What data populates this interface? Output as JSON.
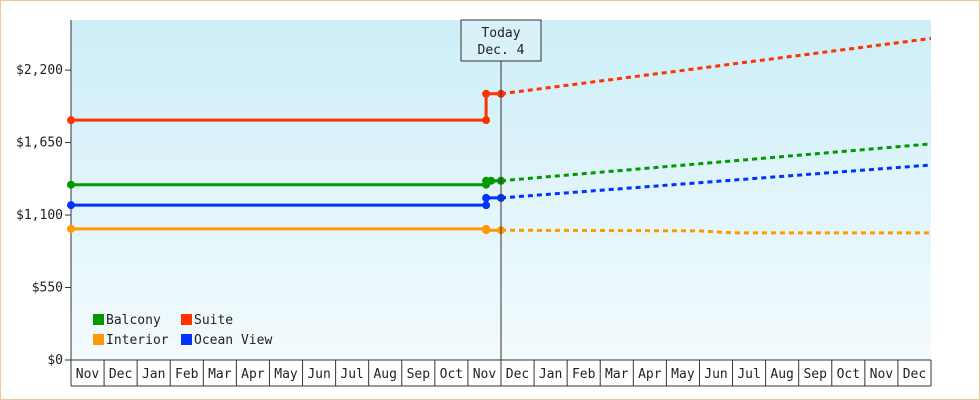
{
  "chart_data": {
    "type": "line",
    "currency_prefix": "$",
    "y_ticks": [
      0,
      550,
      1100,
      1650,
      2200
    ],
    "y_tick_labels": [
      "$0",
      "$550",
      "$1,100",
      "$1,650",
      "$2,200"
    ],
    "ylim": [
      0,
      2580
    ],
    "x_months": [
      "Nov",
      "Dec",
      "Jan",
      "Feb",
      "Mar",
      "Apr",
      "May",
      "Jun",
      "Jul",
      "Aug",
      "Sep",
      "Oct",
      "Nov",
      "Dec",
      "Jan",
      "Feb",
      "Mar",
      "Apr",
      "May",
      "Jun",
      "Jul",
      "Aug",
      "Sep",
      "Oct",
      "Nov",
      "Dec"
    ],
    "today_marker": {
      "line1": "Today",
      "line2": "Dec. 4",
      "x": 13
    },
    "series": [
      {
        "name": "Suite",
        "color": "#ff3300",
        "history": [
          [
            0,
            1820
          ],
          [
            12.55,
            1820
          ],
          [
            12.55,
            2020
          ],
          [
            13,
            2020
          ]
        ],
        "history_points": [
          [
            0,
            1820
          ],
          [
            12.55,
            1820
          ],
          [
            12.55,
            2020
          ],
          [
            13,
            2020
          ]
        ],
        "forecast": [
          [
            13,
            2020
          ],
          [
            26,
            2440
          ]
        ]
      },
      {
        "name": "Balcony",
        "color": "#009900",
        "history": [
          [
            0,
            1330
          ],
          [
            12.55,
            1330
          ],
          [
            12.55,
            1360
          ],
          [
            13,
            1360
          ]
        ],
        "history_points": [
          [
            0,
            1330
          ],
          [
            12.55,
            1330
          ],
          [
            12.55,
            1360
          ],
          [
            12.7,
            1360
          ],
          [
            13,
            1360
          ]
        ],
        "forecast": [
          [
            13,
            1360
          ],
          [
            26,
            1640
          ]
        ]
      },
      {
        "name": "Ocean View",
        "color": "#0033ff",
        "history": [
          [
            0,
            1175
          ],
          [
            12.55,
            1175
          ],
          [
            12.55,
            1230
          ],
          [
            13,
            1230
          ]
        ],
        "history_points": [
          [
            0,
            1175
          ],
          [
            12.55,
            1175
          ],
          [
            12.55,
            1230
          ],
          [
            13,
            1230
          ]
        ],
        "forecast": [
          [
            13,
            1230
          ],
          [
            26,
            1480
          ]
        ]
      },
      {
        "name": "Interior",
        "color": "#ff9900",
        "history": [
          [
            0,
            995
          ],
          [
            12.55,
            995
          ],
          [
            12.55,
            985
          ],
          [
            13,
            985
          ]
        ],
        "history_points": [
          [
            0,
            995
          ],
          [
            12.55,
            995
          ],
          [
            12.55,
            985
          ],
          [
            13,
            985
          ]
        ],
        "forecast": [
          [
            13,
            985
          ],
          [
            19,
            980
          ],
          [
            20,
            965
          ],
          [
            26,
            965
          ]
        ]
      }
    ],
    "legend": [
      {
        "name": "Balcony",
        "color": "#009900"
      },
      {
        "name": "Suite",
        "color": "#ff3300"
      },
      {
        "name": "Interior",
        "color": "#ff9900"
      },
      {
        "name": "Ocean View",
        "color": "#0033ff"
      }
    ],
    "legend_placement": "bottom-left",
    "grid": false
  }
}
